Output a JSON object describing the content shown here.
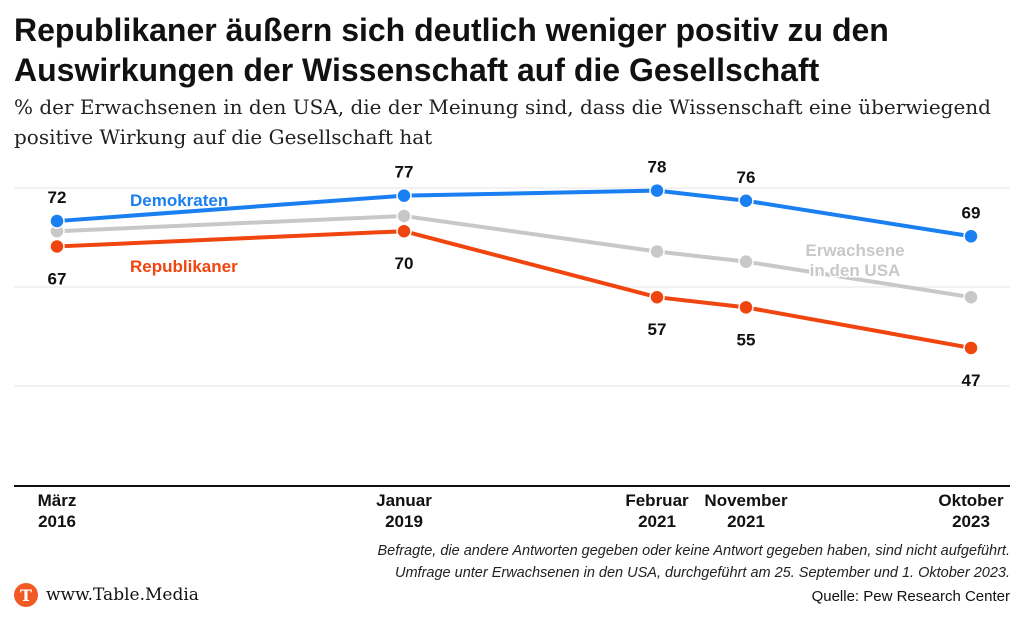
{
  "header": {
    "title": "Republikaner äußern sich deutlich weniger positiv zu den Auswirkungen der Wissenschaft auf die Gesellschaft",
    "subtitle": "% der Erwachsenen in den USA, die der Meinung sind, dass die Wissenschaft eine überwiegend positive Wirkung auf die Gesellschaft hat"
  },
  "chart_data": {
    "type": "line",
    "x": [
      {
        "label_line1": "März",
        "label_line2": "2016",
        "date": "2016-03"
      },
      {
        "label_line1": "Januar",
        "label_line2": "2019",
        "date": "2019-01"
      },
      {
        "label_line1": "Februar",
        "label_line2": "2021",
        "date": "2021-02"
      },
      {
        "label_line1": "November",
        "label_line2": "2021",
        "date": "2021-11"
      },
      {
        "label_line1": "Oktober",
        "label_line2": "2023",
        "date": "2023-10"
      }
    ],
    "series": [
      {
        "name": "Erwachsene in den USA",
        "label_line1": "Erwachsene",
        "label_line2": "in den USA",
        "values": [
          70,
          73,
          66,
          64,
          57
        ],
        "show_values": false,
        "color": "#c8c8c8"
      },
      {
        "name": "Republikaner",
        "values": [
          67,
          70,
          57,
          55,
          47
        ],
        "show_values": true,
        "color": "#f0450e"
      },
      {
        "name": "Demokraten",
        "values": [
          72,
          77,
          78,
          76,
          69
        ],
        "show_values": true,
        "color": "#1a7ff0"
      }
    ],
    "ylim": [
      20,
      86
    ],
    "grid": true,
    "legend": "inline labels"
  },
  "footer": {
    "note_line1": "Befragte, die andere Antworten gegeben oder keine Antwort gegeben haben, sind nicht aufgeführt.",
    "note_line2": "Umfrage unter Erwachsenen in den USA, durchgeführt am 25. September und 1. Oktober 2023.",
    "brand": "www.Table.Media",
    "logo_letter": "T",
    "source": "Quelle: Pew Research Center"
  }
}
